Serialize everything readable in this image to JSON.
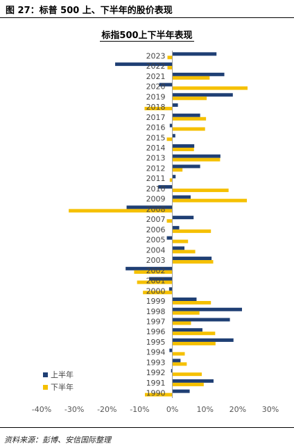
{
  "figure_title": "图 27：标普 500 上、下半年的股价表现",
  "source_note": "资料来源：彭博、安信国际整理",
  "colors": {
    "h1": "#1f3f74",
    "h2": "#f5c000"
  },
  "chart_data": {
    "type": "bar",
    "orientation": "horizontal",
    "title": "标指500上下半年表现",
    "categories": [
      "2023",
      "2022",
      "2021",
      "2020",
      "2019",
      "2018",
      "2017",
      "2016",
      "2015",
      "2014",
      "2013",
      "2012",
      "2011",
      "2010",
      "2009",
      "2008",
      "2007",
      "2006",
      "2005",
      "2004",
      "2003",
      "2002",
      "2001",
      "2000",
      "1999",
      "1998",
      "1997",
      "1996",
      "1995",
      "1994",
      "1993",
      "1992",
      "1991",
      "1990"
    ],
    "series": [
      {
        "name": "上半年",
        "values": [
          13.5,
          -17.5,
          15.9,
          -4.0,
          18.5,
          1.7,
          8.5,
          -0.8,
          0.9,
          6.7,
          14.7,
          8.5,
          1.0,
          -4.3,
          5.6,
          -14.0,
          6.5,
          2.1,
          -1.7,
          3.7,
          12.0,
          -14.3,
          -7.1,
          -1.0,
          7.4,
          21.3,
          17.6,
          9.2,
          18.7,
          -0.9,
          2.5,
          -0.4,
          12.6,
          5.3
        ]
      },
      {
        "name": "下半年",
        "values": [
          -1.5,
          -1.5,
          11.4,
          23.0,
          10.5,
          -8.5,
          10.3,
          10.0,
          -1.7,
          6.6,
          14.6,
          3.1,
          -0.8,
          17.2,
          22.8,
          -31.7,
          -1.7,
          11.8,
          4.8,
          7.0,
          12.5,
          -11.7,
          -10.8,
          -9.0,
          11.8,
          8.3,
          5.7,
          13.1,
          13.2,
          3.8,
          4.4,
          9.0,
          9.6,
          -8.4
        ]
      }
    ],
    "xlim": [
      -40,
      30
    ],
    "xticks": [
      -40,
      -30,
      -20,
      -10,
      0,
      10,
      20,
      30
    ],
    "xtick_labels": [
      "-40%",
      "-30%",
      "-20%",
      "-10%",
      "0%",
      "10%",
      "20%",
      "30%"
    ],
    "grid": false,
    "legend_position": "bottom-left"
  }
}
